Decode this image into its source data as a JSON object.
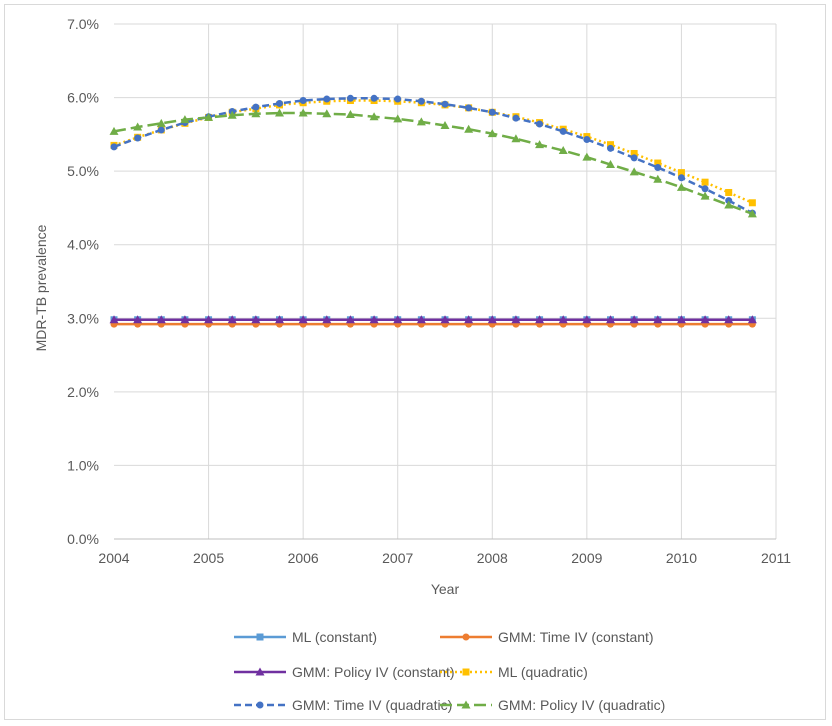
{
  "chart_data": {
    "type": "line",
    "title": "",
    "xlabel": "Year",
    "ylabel": "MDR-TB prevalence",
    "xlim": [
      2004,
      2011
    ],
    "ylim": [
      0,
      0.07
    ],
    "xticks": [
      "2004",
      "2005",
      "2006",
      "2007",
      "2008",
      "2009",
      "2010",
      "2011"
    ],
    "yticks": [
      "0.0%",
      "1.0%",
      "2.0%",
      "3.0%",
      "4.0%",
      "5.0%",
      "6.0%",
      "7.0%"
    ],
    "grid": true,
    "legend_position": "bottom",
    "x": [
      2004,
      2004.25,
      2004.5,
      2004.75,
      2005,
      2005.25,
      2005.5,
      2005.75,
      2006,
      2006.25,
      2006.5,
      2006.75,
      2007,
      2007.25,
      2007.5,
      2007.75,
      2008,
      2008.25,
      2008.5,
      2008.75,
      2009,
      2009.25,
      2009.5,
      2009.75,
      2010,
      2010.25,
      2010.5,
      2010.75
    ],
    "series": [
      {
        "name": "ML (constant)",
        "color": "#5b9bd5",
        "dash": "solid",
        "marker": "square",
        "values": [
          0.0298,
          0.0298,
          0.0298,
          0.0298,
          0.0298,
          0.0298,
          0.0298,
          0.0298,
          0.0298,
          0.0298,
          0.0298,
          0.0298,
          0.0298,
          0.0298,
          0.0298,
          0.0298,
          0.0298,
          0.0298,
          0.0298,
          0.0298,
          0.0298,
          0.0298,
          0.0298,
          0.0298,
          0.0298,
          0.0298,
          0.0298,
          0.0298
        ]
      },
      {
        "name": "GMM: Time IV (constant)",
        "color": "#ed7d31",
        "dash": "solid",
        "marker": "circle",
        "values": [
          0.0292,
          0.0292,
          0.0292,
          0.0292,
          0.0292,
          0.0292,
          0.0292,
          0.0292,
          0.0292,
          0.0292,
          0.0292,
          0.0292,
          0.0292,
          0.0292,
          0.0292,
          0.0292,
          0.0292,
          0.0292,
          0.0292,
          0.0292,
          0.0292,
          0.0292,
          0.0292,
          0.0292,
          0.0292,
          0.0292,
          0.0292,
          0.0292
        ]
      },
      {
        "name": "GMM: Policy IV (constant)",
        "color": "#7030a0",
        "dash": "solid",
        "marker": "triangle",
        "values": [
          0.0298,
          0.0298,
          0.0298,
          0.0298,
          0.0298,
          0.0298,
          0.0298,
          0.0298,
          0.0298,
          0.0298,
          0.0298,
          0.0298,
          0.0298,
          0.0298,
          0.0298,
          0.0298,
          0.0298,
          0.0298,
          0.0298,
          0.0298,
          0.0298,
          0.0298,
          0.0298,
          0.0298,
          0.0298,
          0.0298,
          0.0298,
          0.0298
        ]
      },
      {
        "name": "ML (quadratic)",
        "color": "#ffc000",
        "dash": "dotted",
        "marker": "square",
        "values": [
          0.0535,
          0.0546,
          0.0556,
          0.0565,
          0.0573,
          0.058,
          0.0585,
          0.059,
          0.0593,
          0.0595,
          0.0596,
          0.0596,
          0.0595,
          0.0593,
          0.059,
          0.0586,
          0.058,
          0.0574,
          0.0566,
          0.0557,
          0.0547,
          0.0536,
          0.0524,
          0.0511,
          0.0498,
          0.0485,
          0.0471,
          0.0457
        ]
      },
      {
        "name": "GMM: Time IV (quadratic)",
        "color": "#4472c4",
        "dash": "dashed",
        "marker": "circle",
        "values": [
          0.0533,
          0.0545,
          0.0556,
          0.0566,
          0.0574,
          0.0581,
          0.0587,
          0.0592,
          0.0596,
          0.0598,
          0.0599,
          0.0599,
          0.0598,
          0.0595,
          0.0591,
          0.0586,
          0.058,
          0.0572,
          0.0564,
          0.0554,
          0.0543,
          0.0531,
          0.0518,
          0.0505,
          0.0491,
          0.0476,
          0.046,
          0.0443
        ]
      },
      {
        "name": "GMM: Policy IV (quadratic)",
        "color": "#70ad47",
        "dash": "longdash",
        "marker": "triangle",
        "values": [
          0.0554,
          0.056,
          0.0565,
          0.057,
          0.0573,
          0.0576,
          0.0578,
          0.0579,
          0.0579,
          0.0578,
          0.0577,
          0.0574,
          0.0571,
          0.0567,
          0.0562,
          0.0557,
          0.0551,
          0.0544,
          0.0536,
          0.0528,
          0.0519,
          0.0509,
          0.0499,
          0.0489,
          0.0478,
          0.0466,
          0.0454,
          0.0442
        ]
      }
    ]
  }
}
